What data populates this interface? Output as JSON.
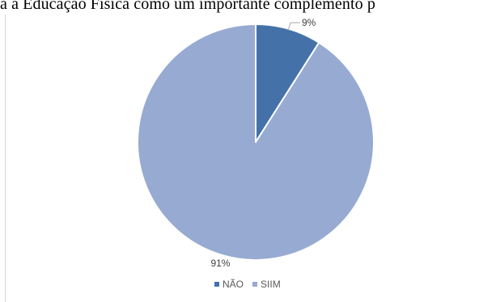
{
  "chart_data": {
    "type": "pie",
    "title": "a a Educação Física como um importante complemento p",
    "categories": [
      "NÃO",
      "SIIM"
    ],
    "values": [
      9,
      91
    ],
    "data_labels": [
      "9%",
      "91%"
    ],
    "colors": [
      "#4472a8",
      "#97aad2"
    ],
    "legend_position": "bottom"
  }
}
